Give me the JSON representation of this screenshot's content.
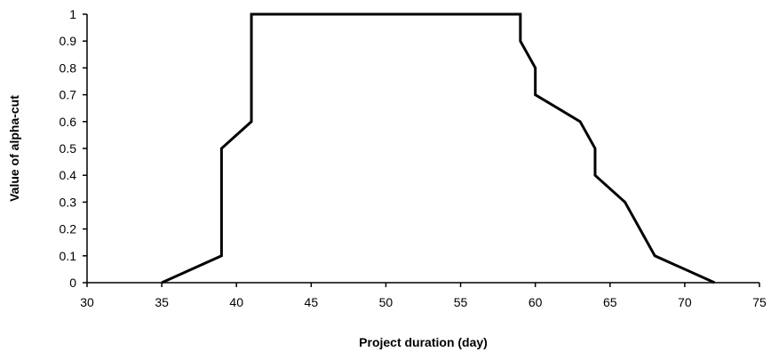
{
  "chart_data": {
    "type": "line",
    "xlabel": "Project duration (day)",
    "ylabel": "Value of alpha-cut",
    "xlim": [
      30,
      75
    ],
    "ylim": [
      0,
      1
    ],
    "xticks": [
      "30",
      "35",
      "40",
      "45",
      "50",
      "55",
      "60",
      "65",
      "70",
      "75"
    ],
    "yticks": [
      "0",
      "0.1",
      "0.2",
      "0.3",
      "0.4",
      "0.5",
      "0.6",
      "0.7",
      "0.8",
      "0.9",
      "1"
    ],
    "grid": false,
    "legend": "none",
    "line_color": "#000000",
    "series": [
      {
        "x": [
          35,
          39,
          39,
          41,
          41,
          59,
          59,
          60,
          60,
          63,
          64,
          64,
          66,
          67,
          68,
          72
        ],
        "y": [
          0,
          0.1,
          0.5,
          0.6,
          1,
          1,
          0.9,
          0.8,
          0.7,
          0.6,
          0.5,
          0.4,
          0.3,
          0.2,
          0.1,
          0
        ]
      }
    ]
  }
}
